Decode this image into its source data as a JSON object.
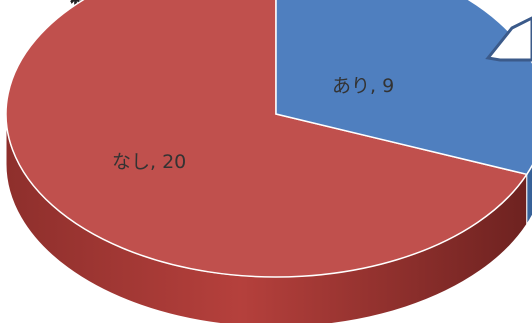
{
  "chart_data": {
    "type": "pie",
    "title": "",
    "categories": [
      "あり",
      "なし"
    ],
    "values": [
      9,
      20
    ],
    "data_labels": [
      "あり, 9",
      "なし, 20"
    ],
    "colors": [
      "#4f7fbf",
      "#c0504d"
    ],
    "style": "3d",
    "legend": "none"
  }
}
